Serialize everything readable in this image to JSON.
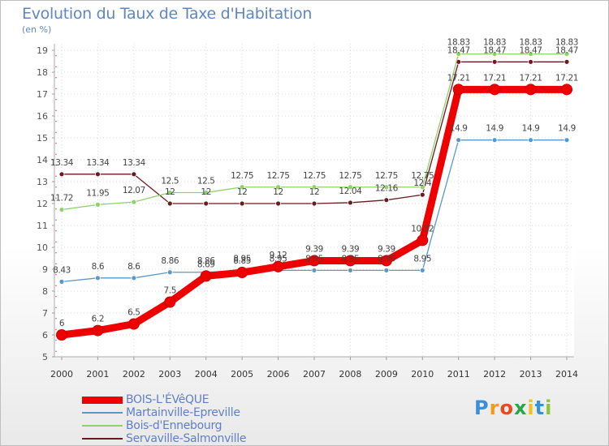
{
  "chart_data": {
    "type": "line",
    "title": "Evolution du Taux de Taxe d'Habitation",
    "ylabel": "(en %)",
    "xlabel": "",
    "ylim": [
      5,
      19
    ],
    "yticks": [
      "5",
      "6",
      "7",
      "8",
      "9",
      "10",
      "11",
      "12",
      "13",
      "14",
      "15",
      "16",
      "17",
      "18",
      "19"
    ],
    "categories": [
      "2000",
      "2001",
      "2002",
      "2003",
      "2004",
      "2005",
      "2006",
      "2007",
      "2008",
      "2009",
      "2010",
      "2011",
      "2012",
      "2013",
      "2014"
    ],
    "series": [
      {
        "name": "Servaville-Salmonville",
        "color": "#6b1a1e",
        "values": [
          13.34,
          13.34,
          13.34,
          12,
          12,
          12,
          12,
          12,
          12.04,
          12.16,
          12.4,
          18.47,
          18.47,
          18.47,
          18.47
        ],
        "labels": [
          "13.34",
          "13.34",
          "13.34",
          "12",
          "12",
          "12",
          "12",
          "12",
          "12.04",
          "12.16",
          "12.4",
          "18.47",
          "18.47",
          "18.47",
          "18.47"
        ]
      },
      {
        "name": "Bois-d'Ennebourg",
        "color": "#8fd16a",
        "values": [
          11.72,
          11.95,
          12.07,
          12.5,
          12.5,
          12.75,
          12.75,
          12.75,
          12.75,
          12.75,
          12.75,
          18.83,
          18.83,
          18.83,
          18.83
        ],
        "labels": [
          "11.72",
          "11.95",
          "12.07",
          "12.5",
          "12.5",
          "12.75",
          "12.75",
          "12.75",
          "12.75",
          "12.75",
          "12.75",
          "18.83",
          "18.83",
          "18.83",
          "18.83"
        ]
      },
      {
        "name": "Martainville-Epreville",
        "color": "#5b98c9",
        "values": [
          8.43,
          8.6,
          8.6,
          8.86,
          8.86,
          8.95,
          8.95,
          8.95,
          8.95,
          8.95,
          8.95,
          14.9,
          14.9,
          14.9,
          14.9
        ],
        "labels": [
          "8.43",
          "8.6",
          "8.6",
          "8.86",
          "8.86",
          "8.95",
          "8.95",
          "8.95",
          "8.95",
          "8.95",
          "8.95",
          "14.9",
          "14.9",
          "14.9",
          "14.9"
        ]
      },
      {
        "name": "BOIS-L'ÉVêQUE",
        "color": "#ee0000",
        "values": [
          6,
          6.2,
          6.5,
          7.5,
          8.69,
          8.85,
          9.12,
          9.39,
          9.39,
          9.39,
          10.32,
          17.21,
          17.21,
          17.21,
          17.21
        ],
        "labels": [
          "6",
          "6.2",
          "6.5",
          "7.5",
          "8.69",
          "8.85",
          "9.12",
          "9.39",
          "9.39",
          "9.39",
          "10.32",
          "17.21",
          "17.21",
          "17.21",
          "17.21"
        ]
      }
    ]
  },
  "legend": {
    "items": [
      {
        "label": "BOIS-L'ÉVêQUE",
        "color": "#ee0000"
      },
      {
        "label": "Martainville-Epreville",
        "color": "#5b98c9"
      },
      {
        "label": "Bois-d'Ennebourg",
        "color": "#8fd16a"
      },
      {
        "label": "Servaville-Salmonville",
        "color": "#6b1a1e"
      }
    ]
  },
  "logo": {
    "letters": [
      "P",
      "r",
      "o",
      "x",
      "i",
      "t",
      "i"
    ],
    "colors": [
      "#3a8fd6",
      "#f29a1c",
      "#e84a1f",
      "#2aa54a",
      "#f2c21c",
      "#3a8fd6",
      "#8fc43a"
    ]
  }
}
